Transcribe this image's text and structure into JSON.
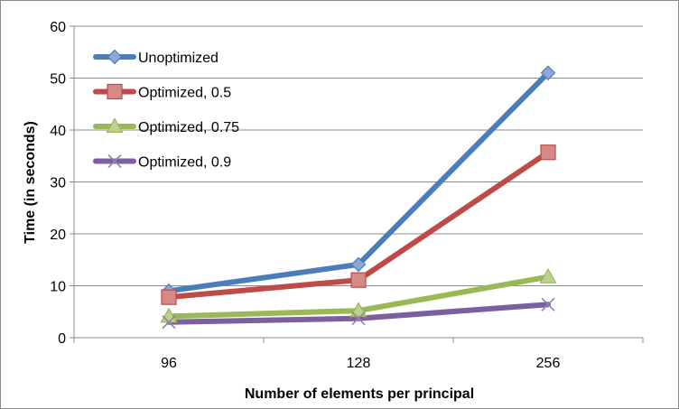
{
  "chart_data": {
    "type": "line",
    "categories": [
      "96",
      "128",
      "256"
    ],
    "series": [
      {
        "name": "Unoptimized",
        "values": [
          9.0,
          14.1,
          51.0
        ],
        "color": "#4a7ebb",
        "marker": "diamond"
      },
      {
        "name": "Optimized, 0.5",
        "values": [
          7.8,
          11.1,
          35.7
        ],
        "color": "#be4b48",
        "marker": "square"
      },
      {
        "name": "Optimized, 0.75",
        "values": [
          4.1,
          5.2,
          11.7
        ],
        "color": "#98b954",
        "marker": "triangle"
      },
      {
        "name": "Optimized, 0.9",
        "values": [
          3.0,
          3.7,
          6.4
        ],
        "color": "#7d5fa0",
        "marker": "x"
      }
    ],
    "title": "",
    "xlabel": "Number of elements per principal",
    "ylabel": "Time (in seconds)",
    "ylim": [
      0,
      60
    ],
    "yticks": [
      0,
      10,
      20,
      30,
      40,
      50,
      60
    ],
    "grid": true,
    "legend": "top-left"
  }
}
